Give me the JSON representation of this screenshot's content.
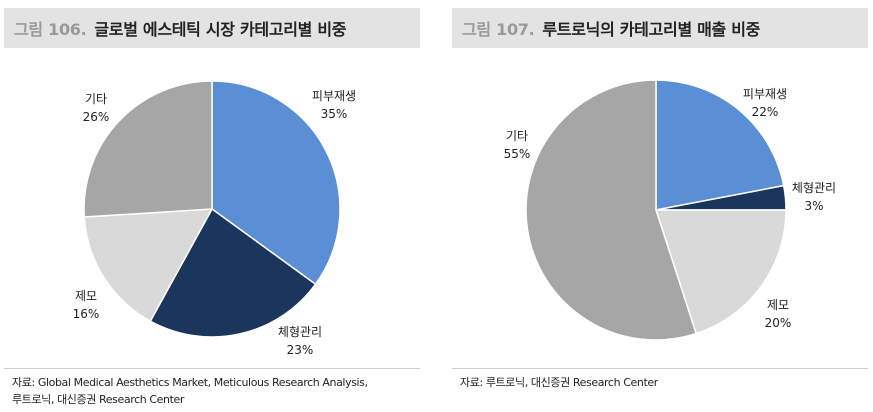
{
  "chart_data": [
    {
      "type": "pie",
      "figure_number": "그림 106.",
      "title": "글로벌 에스테틱 시장 카테고리별 비중",
      "slices": [
        {
          "label": "피부재생",
          "value": 35,
          "value_label": "35%",
          "color": "#5a8fd6"
        },
        {
          "label": "체형관리",
          "value": 23,
          "value_label": "23%",
          "color": "#1b365c"
        },
        {
          "label": "제모",
          "value": 16,
          "value_label": "16%",
          "color": "#d9d9d9"
        },
        {
          "label": "기타",
          "value": 26,
          "value_label": "26%",
          "color": "#a6a6a6"
        }
      ],
      "source_lines": [
        "자료: Global Medical Aesthetics Market, Meticulous Research Analysis,",
        "루트로닉, 대신증권 Research Center"
      ]
    },
    {
      "type": "pie",
      "figure_number": "그림 107.",
      "title": "루트로닉의 카테고리별 매출 비중",
      "slices": [
        {
          "label": "피부재생",
          "value": 22,
          "value_label": "22%",
          "color": "#5a8fd6"
        },
        {
          "label": "체형관리",
          "value": 3,
          "value_label": "3%",
          "color": "#1b365c"
        },
        {
          "label": "제모",
          "value": 20,
          "value_label": "20%",
          "color": "#d9d9d9"
        },
        {
          "label": "기타",
          "value": 55,
          "value_label": "55%",
          "color": "#a6a6a6"
        }
      ],
      "source_lines": [
        "자료: 루트로닉, 대신증권 Research Center"
      ]
    }
  ]
}
